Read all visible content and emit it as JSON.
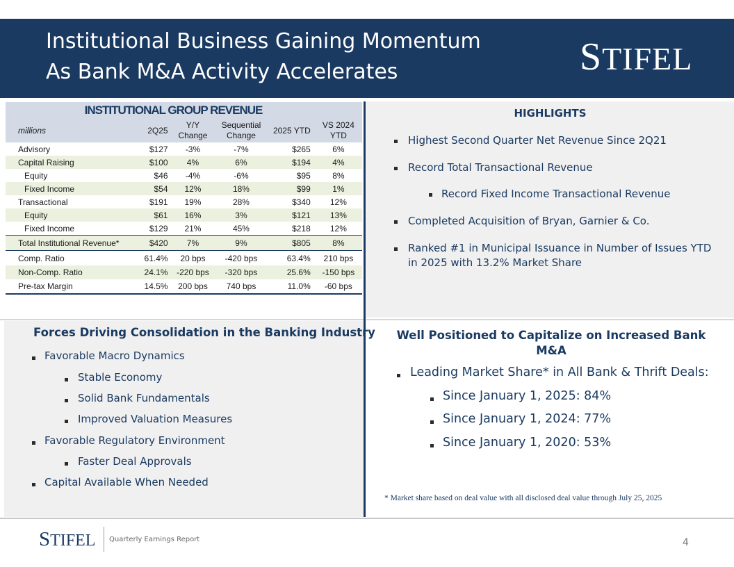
{
  "header": {
    "title_line1": "Institutional Business Gaining Momentum",
    "title_line2": "As Bank M&A Activity Accelerates",
    "logo_first": "S",
    "logo_rest": "TIFEL"
  },
  "table": {
    "title": "INSTITUTIONAL GROUP REVENUE",
    "headers": [
      "millions",
      "2Q25",
      "Y/Y Change",
      "Sequential Change",
      "2025 YTD",
      "VS 2024 YTD"
    ],
    "rows": [
      {
        "label": "Advisory",
        "c1": "$127",
        "c2": "-3%",
        "c3": "-7%",
        "c4": "$265",
        "c5": "6%"
      },
      {
        "label": "Capital Raising",
        "c1": "$100",
        "c2": "4%",
        "c3": "6%",
        "c4": "$194",
        "c5": "4%"
      },
      {
        "label": "Equity",
        "c1": "$46",
        "c2": "-4%",
        "c3": "-6%",
        "c4": "$95",
        "c5": "8%"
      },
      {
        "label": "Fixed Income",
        "c1": "$54",
        "c2": "12%",
        "c3": "18%",
        "c4": "$99",
        "c5": "1%"
      },
      {
        "label": "Transactional",
        "c1": "$191",
        "c2": "19%",
        "c3": "28%",
        "c4": "$340",
        "c5": "12%"
      },
      {
        "label": "Equity",
        "c1": "$61",
        "c2": "16%",
        "c3": "3%",
        "c4": "$121",
        "c5": "13%"
      },
      {
        "label": "Fixed Income",
        "c1": "$129",
        "c2": "21%",
        "c3": "45%",
        "c4": "$218",
        "c5": "12%"
      },
      {
        "label": "Total Institutional Revenue*",
        "c1": "$420",
        "c2": "7%",
        "c3": "9%",
        "c4": "$805",
        "c5": "8%"
      },
      {
        "label": "Comp. Ratio",
        "c1": "61.4%",
        "c2": "20 bps",
        "c3": "-420 bps",
        "c4": "63.4%",
        "c5": "210 bps"
      },
      {
        "label": "Non-Comp. Ratio",
        "c1": "24.1%",
        "c2": "-220 bps",
        "c3": "-320 bps",
        "c4": "25.6%",
        "c5": "-150 bps"
      },
      {
        "label": "Pre-tax Margin",
        "c1": "14.5%",
        "c2": "200 bps",
        "c3": "740 bps",
        "c4": "11.0%",
        "c5": "-60 bps"
      }
    ]
  },
  "highlights": {
    "title": "HIGHLIGHTS",
    "items": [
      "Highest Second Quarter Net Revenue Since 2Q21",
      "Record Total Transactional Revenue",
      "Record Fixed Income Transactional Revenue",
      "Completed Acquisition of Bryan, Garnier & Co.",
      "Ranked #1 in Municipal Issuance in Number of Issues  YTD",
      "in 2025 with 13.2% Market Share"
    ]
  },
  "forces": {
    "title": "Forces Driving Consolidation in the Banking Industry",
    "items": [
      "Favorable Macro Dynamics",
      "Stable Economy",
      "Solid Bank Fundamentals",
      "Improved Valuation Measures",
      "Favorable Regulatory Environment",
      "Faster Deal Approvals",
      "Capital Available When Needed"
    ]
  },
  "positioned": {
    "title_line1": "Well Positioned to Capitalize on Increased Bank",
    "title_line2": "M&A",
    "items": [
      "Leading Market Share* in All Bank & Thrift Deals:",
      "Since January 1, 2025:  84%",
      "Since January 1, 2024:  77%",
      "Since January 1, 2020:  53%"
    ],
    "footnote": "* Market share based on deal value with all disclosed deal value through July 25, 2025"
  },
  "footer": {
    "logo_first": "S",
    "logo_rest": "TIFEL",
    "text": "Quarterly Earnings Report",
    "page": "4"
  },
  "colors": {
    "navy": "#1a3a61",
    "header_fill": "#d3d9e5",
    "row_shade": "#ebf1de",
    "panel_gray": "#f0f0f0"
  }
}
